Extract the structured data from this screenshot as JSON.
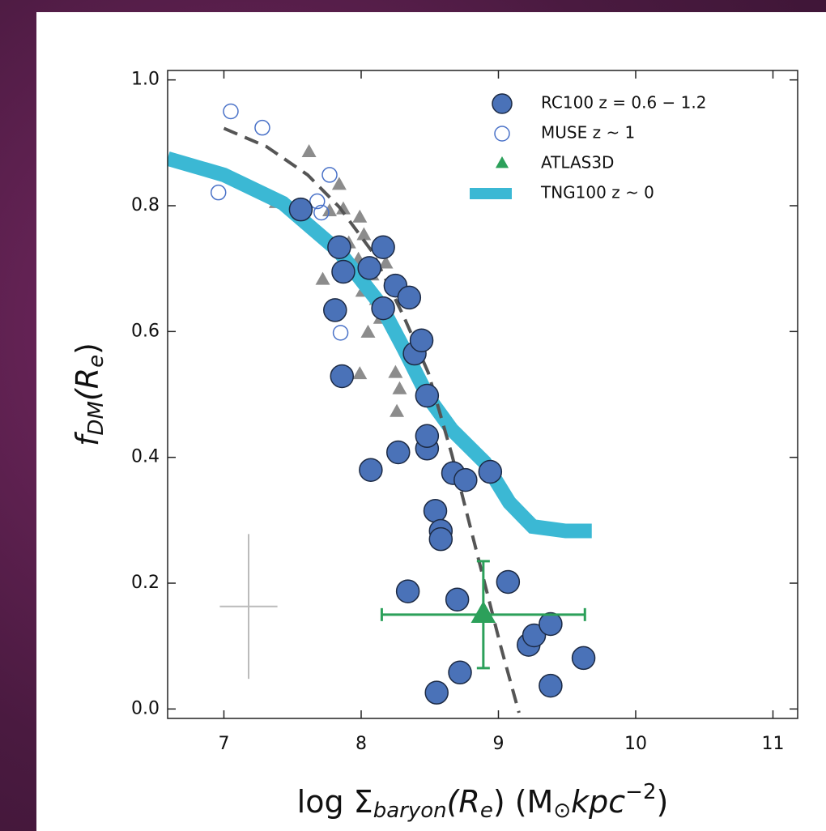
{
  "chart_data": {
    "type": "scatter",
    "x_label": [
      "log Σ",
      "baryon",
      "(R",
      "e",
      ") (M",
      "⊙",
      "kpc",
      "−2",
      ")"
    ],
    "y_label": [
      "f",
      "DM",
      "(R",
      "e",
      ")"
    ],
    "xlim": [
      6.59,
      11.18
    ],
    "ylim": [
      -0.015,
      1.015
    ],
    "xticks": [
      7,
      8,
      9,
      10,
      11
    ],
    "yticks": [
      {
        "value": 0,
        "label": "0.0"
      },
      0.2,
      0.4,
      0.6,
      0.8,
      {
        "value": 1,
        "label": "1.0"
      }
    ],
    "legend": "upper right",
    "series": [
      {
        "name": "RC100 z = 0.6 − 1.2",
        "marker": "filled-circle",
        "color": "#4a72b8",
        "edge": "#1c2a44",
        "x": [
          7.56,
          7.84,
          7.87,
          7.81,
          7.86,
          8.06,
          8.16,
          8.16,
          8.25,
          8.35,
          8.39,
          8.44,
          8.48,
          8.48,
          8.48,
          8.27,
          8.07,
          8.67,
          8.76,
          8.94,
          8.54,
          8.58,
          8.58,
          8.34,
          8.7,
          9.07,
          9.22,
          9.26,
          9.38,
          9.62,
          9.38,
          8.72,
          8.55
        ],
        "values": [
          0.794,
          0.734,
          0.695,
          0.634,
          0.529,
          0.701,
          0.734,
          0.637,
          0.673,
          0.654,
          0.565,
          0.586,
          0.498,
          0.414,
          0.434,
          0.408,
          0.38,
          0.375,
          0.364,
          0.377,
          0.315,
          0.283,
          0.27,
          0.187,
          0.174,
          0.202,
          0.102,
          0.117,
          0.135,
          0.081,
          0.037,
          0.058,
          0.026
        ]
      },
      {
        "name": "MUSE z ~ 1",
        "marker": "open-circle",
        "color": "#4a72c8",
        "x": [
          7.05,
          7.28,
          7.77,
          6.96,
          7.68,
          7.71,
          7.85
        ],
        "values": [
          0.95,
          0.924,
          0.849,
          0.821,
          0.807,
          0.789,
          0.598
        ]
      },
      {
        "name": "ATLAS3D",
        "marker": "triangle",
        "color": "#2ca05a",
        "point_color": "#8c8c8c",
        "x": [
          7.62,
          7.38,
          7.61,
          7.84,
          7.87,
          7.77,
          7.72,
          7.99,
          8.02,
          7.98,
          8.08,
          8.01,
          8.11,
          8.05,
          7.99,
          8.14,
          8.25,
          8.28,
          8.26,
          7.91,
          8.18,
          8.37
        ],
        "values": [
          0.885,
          0.804,
          0.772,
          0.833,
          0.794,
          0.791,
          0.682,
          0.781,
          0.753,
          0.714,
          0.689,
          0.663,
          0.65,
          0.598,
          0.532,
          0.62,
          0.534,
          0.508,
          0.472,
          0.74,
          0.708,
          0.56
        ],
        "mean": {
          "x": 8.89,
          "y": 0.15,
          "xerr": 0.74,
          "yerr": 0.085
        }
      },
      {
        "name": "TNG100 z ~ 0",
        "marker": "line",
        "color": "#3bb8d4",
        "x": [
          6.59,
          7.0,
          7.43,
          7.84,
          8.14,
          8.31,
          8.49,
          8.66,
          8.9,
          9.08,
          9.25,
          9.49,
          9.68
        ],
        "values": [
          0.875,
          0.849,
          0.804,
          0.727,
          0.643,
          0.573,
          0.495,
          0.444,
          0.392,
          0.328,
          0.29,
          0.283,
          0.283
        ]
      }
    ],
    "model_line": {
      "color": "#555555",
      "x": [
        7.0,
        7.31,
        7.61,
        7.84,
        8.08,
        8.31,
        8.49,
        8.66,
        8.84,
        9.02,
        9.15
      ],
      "values": [
        0.923,
        0.894,
        0.849,
        0.798,
        0.727,
        0.624,
        0.534,
        0.405,
        0.251,
        0.097,
        -0.006
      ]
    },
    "error_cross": {
      "x": 7.18,
      "y": 0.163,
      "xerr": 0.21,
      "yerr": 0.115,
      "color": "#bbbbbb"
    }
  }
}
